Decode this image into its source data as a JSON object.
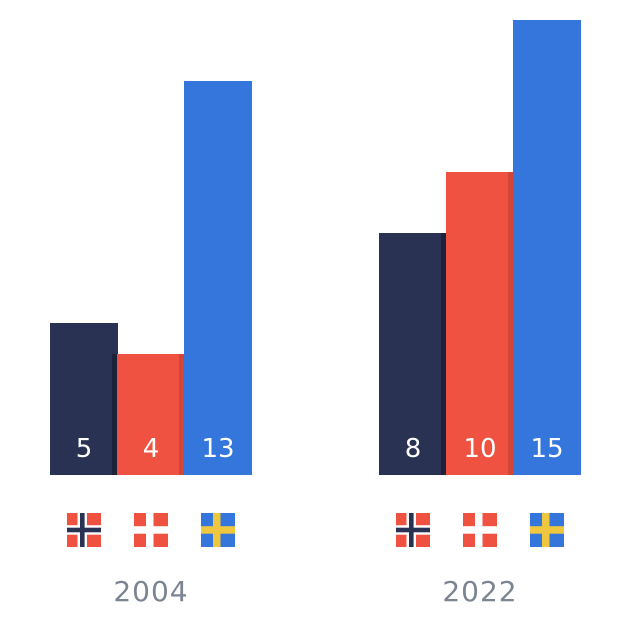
{
  "chart_data": {
    "type": "bar",
    "title": "",
    "categories": [
      "2004",
      "2022"
    ],
    "series": [
      {
        "name": "Norway",
        "icon": "norway-flag-icon",
        "color": "#293253",
        "values": [
          5,
          8
        ]
      },
      {
        "name": "Denmark",
        "icon": "denmark-flag-icon",
        "color": "#ef5240",
        "values": [
          4,
          10
        ]
      },
      {
        "name": "Sweden",
        "icon": "sweden-flag-icon",
        "color": "#3476dc",
        "values": [
          13,
          15
        ]
      }
    ],
    "show_value_labels": true,
    "value_label_color": "#ffffff",
    "category_label_color": "#7b8491",
    "background": "#ffffff",
    "grid": false,
    "axes_visible": false,
    "legend_position": "flags-below-each-group",
    "ylim": [
      0,
      15
    ]
  },
  "flags": {
    "norway": {
      "field": "#ef5240",
      "cross_outer": "#ffffff",
      "cross_inner": "#293253"
    },
    "denmark": {
      "field": "#ef5240",
      "cross": "#ffffff"
    },
    "sweden": {
      "field": "#3476dc",
      "cross": "#eec73e"
    }
  }
}
